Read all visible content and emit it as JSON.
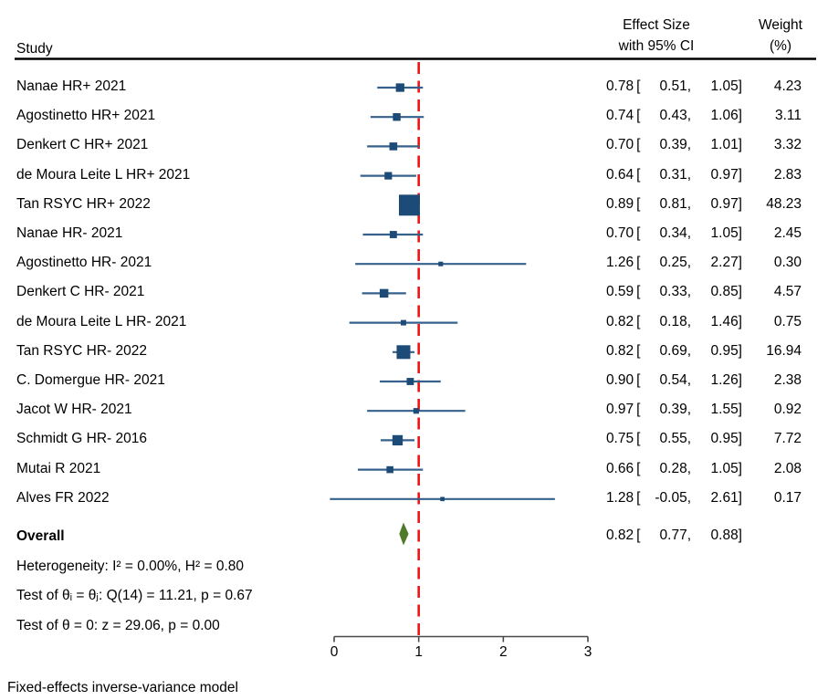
{
  "header": {
    "study_col": "Study",
    "effect_col_line1": "Effect Size",
    "effect_col_line2": "with 95% CI",
    "weight_col_line1": "Weight",
    "weight_col_line2": "(%)"
  },
  "stats_lines": [
    "Heterogeneity: I² = 0.00%, H² = 0.80",
    "Test of θᵢ = θⱼ: Q(14) = 11.21, p = 0.67",
    "Test of θ = 0: z = 29.06, p = 0.00"
  ],
  "footer_note": "Fixed-effects inverse-variance model",
  "colors": {
    "marker": "#1d4b77",
    "ci_line": "#35618c",
    "reference_line": "#f01414",
    "diamond_fill": "#4f7a2b",
    "axis": "#4a4a4a",
    "header_rule": "#000000",
    "text": "#000000"
  },
  "chart_data": {
    "type": "forest",
    "xlabel": "",
    "ylabel": "",
    "xlim": [
      0,
      3
    ],
    "x_ticks": [
      "0",
      "1",
      "2",
      "3"
    ],
    "x_tick_values": [
      0,
      1,
      2,
      3
    ],
    "reference_line": 1,
    "studies": [
      {
        "name": "Nanae HR+ 2021",
        "effect": 0.78,
        "ci_lower": 0.51,
        "ci_upper": 1.05,
        "weight": 4.23
      },
      {
        "name": "Agostinetto HR+ 2021",
        "effect": 0.74,
        "ci_lower": 0.43,
        "ci_upper": 1.06,
        "weight": 3.11
      },
      {
        "name": "Denkert C HR+ 2021",
        "effect": 0.7,
        "ci_lower": 0.39,
        "ci_upper": 1.01,
        "weight": 3.32
      },
      {
        "name": "de Moura Leite L HR+ 2021",
        "effect": 0.64,
        "ci_lower": 0.31,
        "ci_upper": 0.97,
        "weight": 2.83
      },
      {
        "name": "Tan RSYC HR+ 2022",
        "effect": 0.89,
        "ci_lower": 0.81,
        "ci_upper": 0.97,
        "weight": 48.23
      },
      {
        "name": "Nanae HR- 2021",
        "effect": 0.7,
        "ci_lower": 0.34,
        "ci_upper": 1.05,
        "weight": 2.45
      },
      {
        "name": "Agostinetto HR- 2021",
        "effect": 1.26,
        "ci_lower": 0.25,
        "ci_upper": 2.27,
        "weight": 0.3
      },
      {
        "name": "Denkert C HR- 2021",
        "effect": 0.59,
        "ci_lower": 0.33,
        "ci_upper": 0.85,
        "weight": 4.57
      },
      {
        "name": "de Moura Leite L HR- 2021",
        "effect": 0.82,
        "ci_lower": 0.18,
        "ci_upper": 1.46,
        "weight": 0.75
      },
      {
        "name": "Tan RSYC HR- 2022",
        "effect": 0.82,
        "ci_lower": 0.69,
        "ci_upper": 0.95,
        "weight": 16.94
      },
      {
        "name": "C. Domergue HR- 2021",
        "effect": 0.9,
        "ci_lower": 0.54,
        "ci_upper": 1.26,
        "weight": 2.38
      },
      {
        "name": "Jacot W HR- 2021",
        "effect": 0.97,
        "ci_lower": 0.39,
        "ci_upper": 1.55,
        "weight": 0.92
      },
      {
        "name": "Schmidt G HR- 2016",
        "effect": 0.75,
        "ci_lower": 0.55,
        "ci_upper": 0.95,
        "weight": 7.72
      },
      {
        "name": "Mutai R 2021",
        "effect": 0.66,
        "ci_lower": 0.28,
        "ci_upper": 1.05,
        "weight": 2.08
      },
      {
        "name": "Alves FR 2022",
        "effect": 1.28,
        "ci_lower": -0.05,
        "ci_upper": 2.61,
        "weight": 0.17
      }
    ],
    "overall": {
      "label": "Overall",
      "effect": 0.82,
      "ci_lower": 0.77,
      "ci_upper": 0.88
    }
  }
}
